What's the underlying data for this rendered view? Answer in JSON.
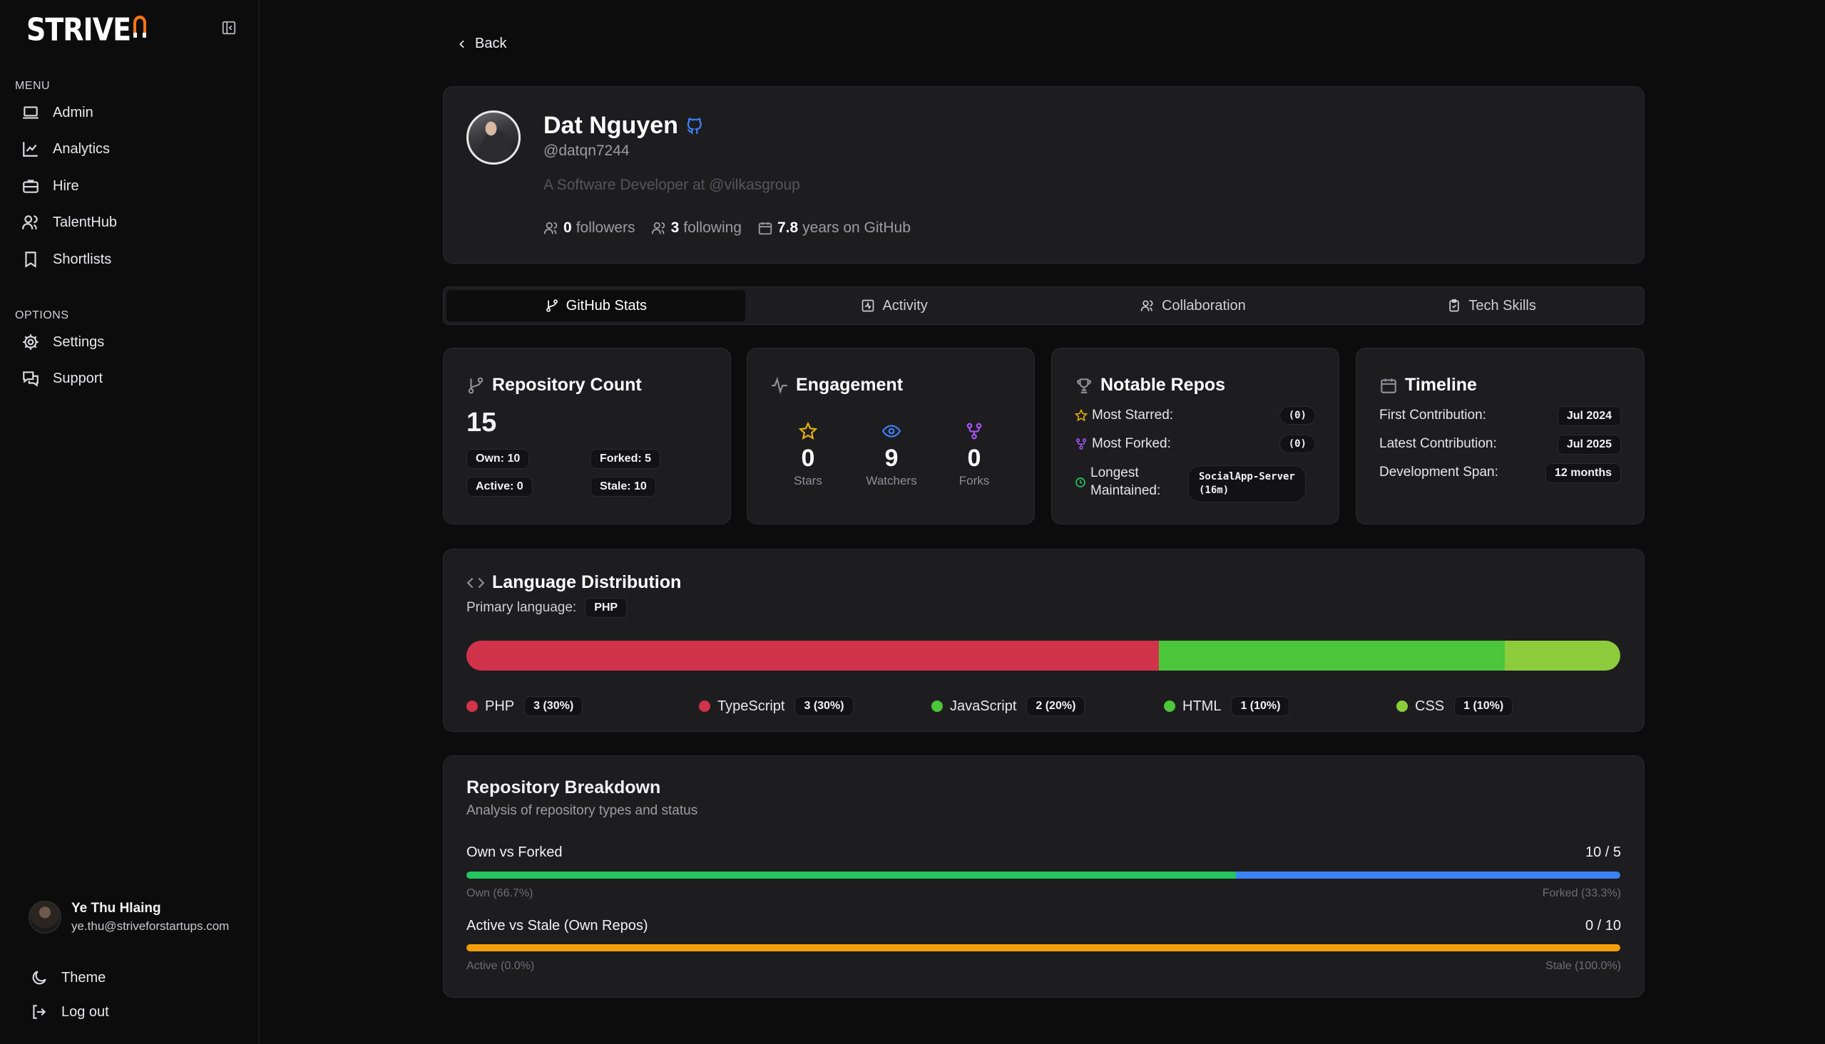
{
  "brand": {
    "name": "STRIVE",
    "accent": "#f97316"
  },
  "sidebar": {
    "menu_label": "MENU",
    "menu_items": [
      {
        "label": "Admin",
        "icon": "laptop-icon"
      },
      {
        "label": "Analytics",
        "icon": "chart-line-icon"
      },
      {
        "label": "Hire",
        "icon": "briefcase-icon"
      },
      {
        "label": "TalentHub",
        "icon": "users-icon"
      },
      {
        "label": "Shortlists",
        "icon": "bookmark-icon"
      }
    ],
    "options_label": "OPTIONS",
    "option_items": [
      {
        "label": "Settings",
        "icon": "gear-icon"
      },
      {
        "label": "Support",
        "icon": "chat-icon"
      }
    ],
    "user": {
      "name": "Ye Thu Hlaing",
      "email": "ye.thu@striveforstartups.com"
    },
    "theme_label": "Theme",
    "logout_label": "Log out"
  },
  "back_label": "Back",
  "profile": {
    "name": "Dat Nguyen",
    "handle": "@datqn7244",
    "bio": "A Software Developer at @vilkasgroup",
    "followers": "0",
    "followers_label": "followers",
    "following": "3",
    "following_label": "following",
    "years": "7.8",
    "years_label": "years on GitHub"
  },
  "tabs": [
    {
      "label": "GitHub Stats",
      "active": true
    },
    {
      "label": "Activity",
      "active": false
    },
    {
      "label": "Collaboration",
      "active": false
    },
    {
      "label": "Tech Skills",
      "active": false
    }
  ],
  "repo_count": {
    "title": "Repository Count",
    "total": "15",
    "own": "Own: 10",
    "forked": "Forked: 5",
    "active": "Active: 0",
    "stale": "Stale: 10"
  },
  "engagement": {
    "title": "Engagement",
    "stars": "0",
    "stars_label": "Stars",
    "watchers": "9",
    "watchers_label": "Watchers",
    "forks": "0",
    "forks_label": "Forks"
  },
  "notable_repos": {
    "title": "Notable Repos",
    "most_starred_label": "Most Starred:",
    "most_starred_value": "(0)",
    "most_forked_label": "Most Forked:",
    "most_forked_value": "(0)",
    "longest_label_1": "Longest",
    "longest_label_2": "Maintained:",
    "longest_value_1": "SocialApp-Server",
    "longest_value_2": "(16m)"
  },
  "timeline": {
    "title": "Timeline",
    "first_label": "First Contribution:",
    "first_value": "Jul 2024",
    "latest_label": "Latest Contribution:",
    "latest_value": "Jul 2025",
    "span_label": "Development Span:",
    "span_value": "12 months"
  },
  "languages": {
    "title": "Language Distribution",
    "primary_label": "Primary language:",
    "primary_value": "PHP",
    "items": [
      {
        "name": "PHP",
        "count": "3 (30%)",
        "percent": 30,
        "color": "#d1334a"
      },
      {
        "name": "TypeScript",
        "count": "3 (30%)",
        "percent": 30,
        "color": "#d1334a"
      },
      {
        "name": "JavaScript",
        "count": "2 (20%)",
        "percent": 20,
        "color": "#4cc63a"
      },
      {
        "name": "HTML",
        "count": "1 (10%)",
        "percent": 10,
        "color": "#4cc63a"
      },
      {
        "name": "CSS",
        "count": "1 (10%)",
        "percent": 10,
        "color": "#8ccc3c"
      }
    ]
  },
  "breakdown": {
    "title": "Repository Breakdown",
    "subtitle": "Analysis of repository types and status",
    "own_vs_forked": {
      "label": "Own vs Forked",
      "value": "10 / 5",
      "left_label": "Own (66.7%)",
      "right_label": "Forked (33.3%)",
      "left_percent": 66.7,
      "left_color": "#22c55e",
      "right_color": "#3b82f6"
    },
    "active_vs_stale": {
      "label": "Active vs Stale (Own Repos)",
      "value": "0 / 10",
      "left_label": "Active (0.0%)",
      "right_label": "Stale (100.0%)",
      "left_percent": 0,
      "left_color": "#22c55e",
      "right_color": "#f59e0b"
    }
  }
}
